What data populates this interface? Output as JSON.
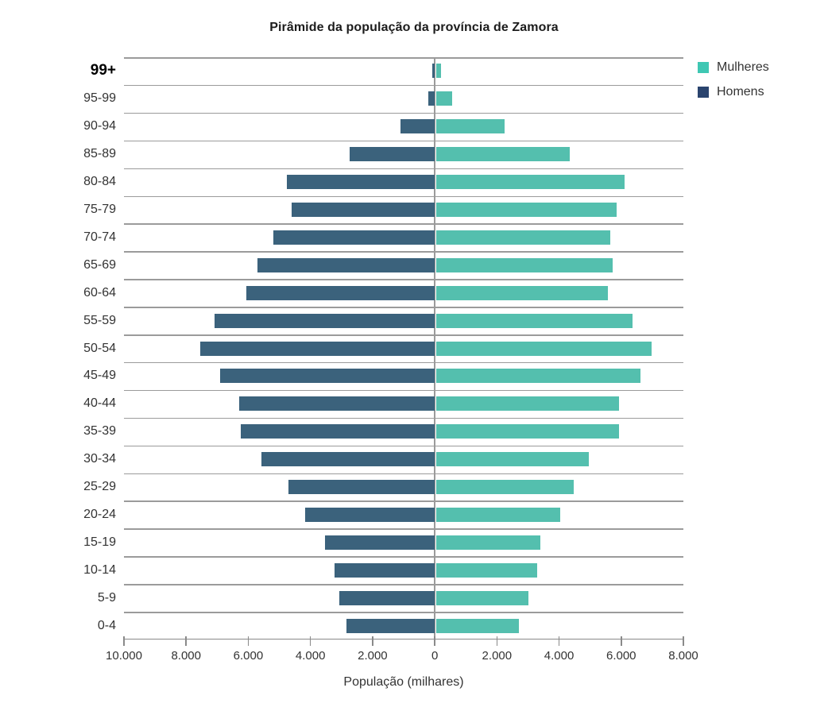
{
  "chart_data": {
    "type": "bar",
    "subtype": "population-pyramid",
    "title": "Pirâmide da população da província de Zamora",
    "xlabel": "População (milhares)",
    "ylabel": "",
    "grid": "horizontal",
    "legend_position": "top-right",
    "categories": [
      "99+",
      "95-99",
      "90-94",
      "85-89",
      "80-84",
      "75-79",
      "70-74",
      "65-69",
      "60-64",
      "55-59",
      "50-54",
      "45-49",
      "40-44",
      "35-39",
      "30-34",
      "25-29",
      "20-24",
      "15-19",
      "10-14",
      "5-9",
      "0-4"
    ],
    "series": [
      {
        "name": "Mulheres",
        "side": "right",
        "bar_color": "#54BFAE",
        "legend_color": "#3FC7B3",
        "values": [
          160,
          520,
          2200,
          4300,
          6080,
          5820,
          5600,
          5690,
          5530,
          6320,
          6940,
          6580,
          5880,
          5880,
          4920,
          4430,
          4000,
          3360,
          3260,
          2980,
          2670
        ]
      },
      {
        "name": "Homens",
        "side": "left",
        "bar_color": "#3B627C",
        "legend_color": "#2A446E",
        "values": [
          80,
          200,
          1100,
          2750,
          4750,
          4600,
          5200,
          5700,
          6050,
          7090,
          7550,
          6900,
          6300,
          6250,
          5580,
          4700,
          4170,
          3530,
          3230,
          3080,
          2850
        ]
      }
    ],
    "x_axis": {
      "min": -10000,
      "max": 8000,
      "tick_values": [
        -10000,
        -8000,
        -6000,
        -4000,
        -2000,
        0,
        2000,
        4000,
        6000,
        8000
      ],
      "tick_labels": [
        "10.000",
        "8.000",
        "6.000",
        "4.000",
        "2.000",
        "0",
        "2.000",
        "4.000",
        "6.000",
        "8.000"
      ]
    },
    "colors": {
      "grid": "#9b9b9b",
      "axis": "#8a8a8a",
      "text": "#333333",
      "title": "#1c1c1c",
      "background": "#ffffff"
    }
  }
}
